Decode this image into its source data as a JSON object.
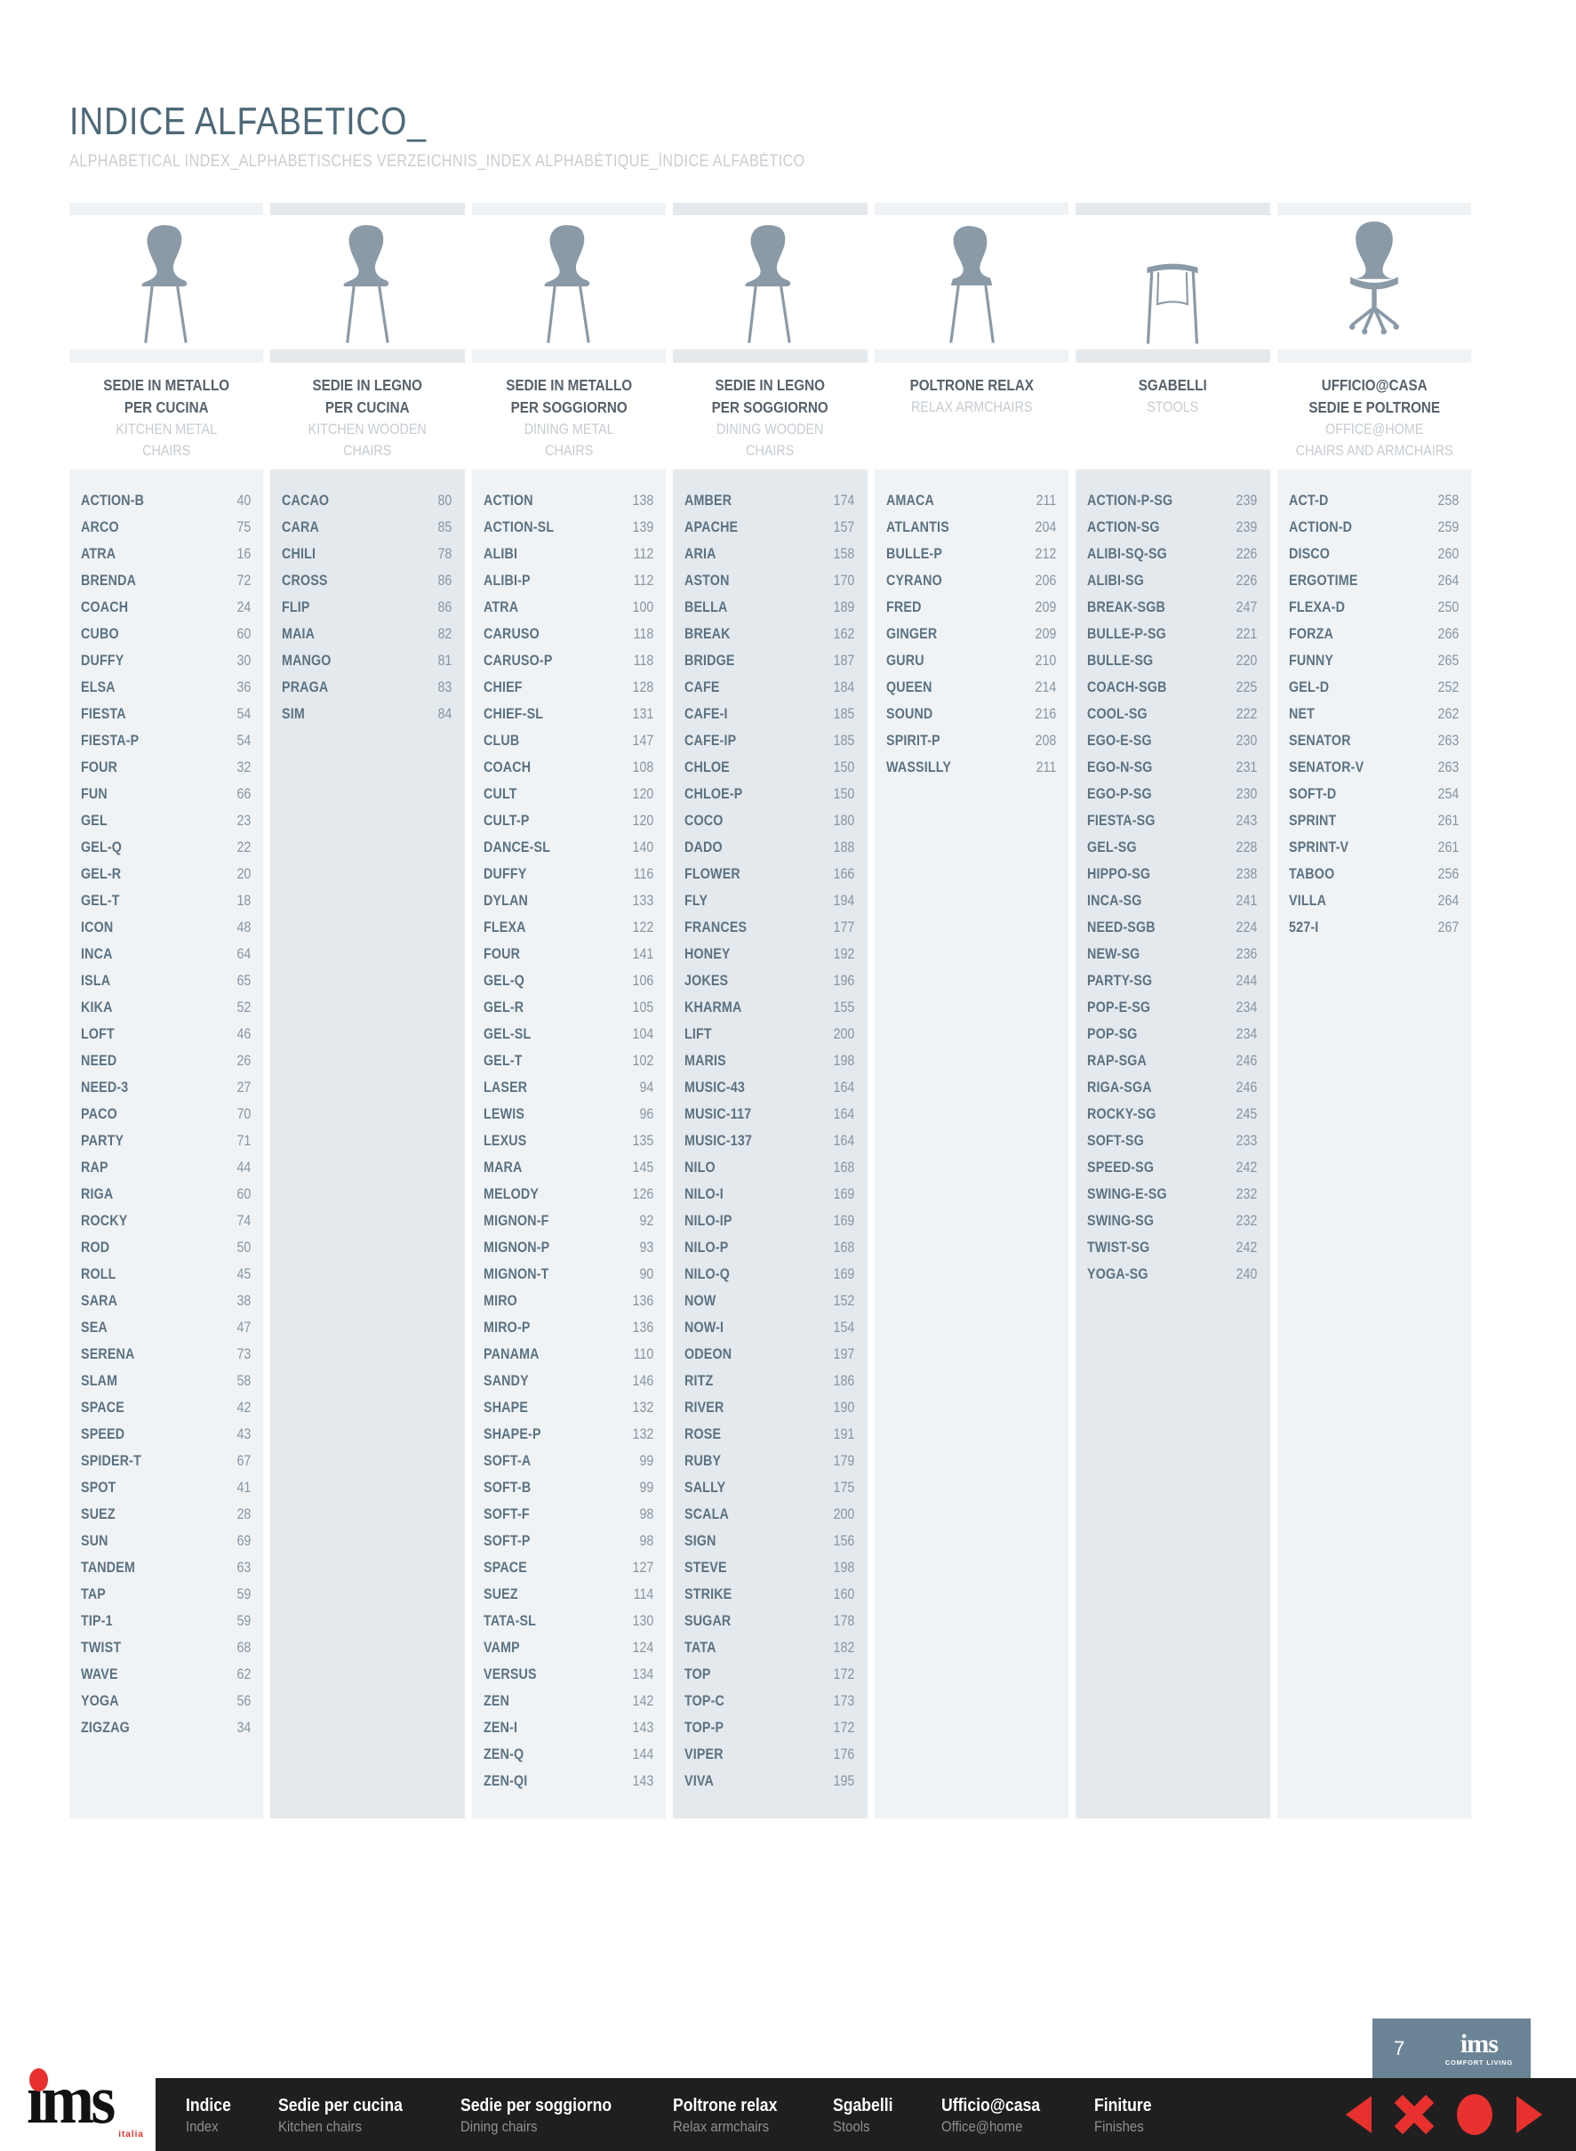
{
  "header": {
    "title": "INDICE ALFABETICO_",
    "subtitle": "ALPHABETICAL INDEX_ALPHABETISCHES VERZEICHNIS_INDEX ALPHABÉTIQUE_ÍNDICE ALFABÉTICO"
  },
  "columns": [
    {
      "id": "kitchen-metal-chairs",
      "icon": "chair-side-icon",
      "title_lines": [
        "SEDIE IN METALLO",
        "PER CUCINA"
      ],
      "subtitle_lines": [
        "KITCHEN METAL",
        "CHAIRS"
      ],
      "items": [
        [
          "ACTION-B",
          "40"
        ],
        [
          "ARCO",
          "75"
        ],
        [
          "ATRA",
          "16"
        ],
        [
          "BRENDA",
          "72"
        ],
        [
          "COACH",
          "24"
        ],
        [
          "CUBO",
          "60"
        ],
        [
          "DUFFY",
          "30"
        ],
        [
          "ELSA",
          "36"
        ],
        [
          "FIESTA",
          "54"
        ],
        [
          "FIESTA-P",
          "54"
        ],
        [
          "FOUR",
          "32"
        ],
        [
          "FUN",
          "66"
        ],
        [
          "GEL",
          "23"
        ],
        [
          "GEL-Q",
          "22"
        ],
        [
          "GEL-R",
          "20"
        ],
        [
          "GEL-T",
          "18"
        ],
        [
          "ICON",
          "48"
        ],
        [
          "INCA",
          "64"
        ],
        [
          "ISLA",
          "65"
        ],
        [
          "KIKA",
          "52"
        ],
        [
          "LOFT",
          "46"
        ],
        [
          "NEED",
          "26"
        ],
        [
          "NEED-3",
          "27"
        ],
        [
          "PACO",
          "70"
        ],
        [
          "PARTY",
          "71"
        ],
        [
          "RAP",
          "44"
        ],
        [
          "RIGA",
          "60"
        ],
        [
          "ROCKY",
          "74"
        ],
        [
          "ROD",
          "50"
        ],
        [
          "ROLL",
          "45"
        ],
        [
          "SARA",
          "38"
        ],
        [
          "SEA",
          "47"
        ],
        [
          "SERENA",
          "73"
        ],
        [
          "SLAM",
          "58"
        ],
        [
          "SPACE",
          "42"
        ],
        [
          "SPEED",
          "43"
        ],
        [
          "SPIDER-T",
          "67"
        ],
        [
          "SPOT",
          "41"
        ],
        [
          "SUEZ",
          "28"
        ],
        [
          "SUN",
          "69"
        ],
        [
          "TANDEM",
          "63"
        ],
        [
          "TAP",
          "59"
        ],
        [
          "TIP-1",
          "59"
        ],
        [
          "TWIST",
          "68"
        ],
        [
          "WAVE",
          "62"
        ],
        [
          "YOGA",
          "56"
        ],
        [
          "ZIGZAG",
          "34"
        ]
      ]
    },
    {
      "id": "kitchen-wooden-chairs",
      "icon": "chair-side-icon",
      "title_lines": [
        "SEDIE IN LEGNO",
        "PER CUCINA"
      ],
      "subtitle_lines": [
        "KITCHEN WOODEN",
        "CHAIRS"
      ],
      "items": [
        [
          "CACAO",
          "80"
        ],
        [
          "CARA",
          "85"
        ],
        [
          "CHILI",
          "78"
        ],
        [
          "CROSS",
          "86"
        ],
        [
          "FLIP",
          "86"
        ],
        [
          "MAIA",
          "82"
        ],
        [
          "MANGO",
          "81"
        ],
        [
          "PRAGA",
          "83"
        ],
        [
          "SIM",
          "84"
        ]
      ]
    },
    {
      "id": "dining-metal-chairs",
      "icon": "chair-side-icon",
      "title_lines": [
        "SEDIE IN METALLO",
        "PER SOGGIORNO"
      ],
      "subtitle_lines": [
        "DINING METAL",
        "CHAIRS"
      ],
      "items": [
        [
          "ACTION",
          "138"
        ],
        [
          "ACTION-SL",
          "139"
        ],
        [
          "ALIBI",
          "112"
        ],
        [
          "ALIBI-P",
          "112"
        ],
        [
          "ATRA",
          "100"
        ],
        [
          "CARUSO",
          "118"
        ],
        [
          "CARUSO-P",
          "118"
        ],
        [
          "CHIEF",
          "128"
        ],
        [
          "CHIEF-SL",
          "131"
        ],
        [
          "CLUB",
          "147"
        ],
        [
          "COACH",
          "108"
        ],
        [
          "CULT",
          "120"
        ],
        [
          "CULT-P",
          "120"
        ],
        [
          "DANCE-SL",
          "140"
        ],
        [
          "DUFFY",
          "116"
        ],
        [
          "DYLAN",
          "133"
        ],
        [
          "FLEXA",
          "122"
        ],
        [
          "FOUR",
          "141"
        ],
        [
          "GEL-Q",
          "106"
        ],
        [
          "GEL-R",
          "105"
        ],
        [
          "GEL-SL",
          "104"
        ],
        [
          "GEL-T",
          "102"
        ],
        [
          "LASER",
          "94"
        ],
        [
          "LEWIS",
          "96"
        ],
        [
          "LEXUS",
          "135"
        ],
        [
          "MARA",
          "145"
        ],
        [
          "MELODY",
          "126"
        ],
        [
          "MIGNON-F",
          "92"
        ],
        [
          "MIGNON-P",
          "93"
        ],
        [
          "MIGNON-T",
          "90"
        ],
        [
          "MIRO",
          "136"
        ],
        [
          "MIRO-P",
          "136"
        ],
        [
          "PANAMA",
          "110"
        ],
        [
          "SANDY",
          "146"
        ],
        [
          "SHAPE",
          "132"
        ],
        [
          "SHAPE-P",
          "132"
        ],
        [
          "SOFT-A",
          "99"
        ],
        [
          "SOFT-B",
          "99"
        ],
        [
          "SOFT-F",
          "98"
        ],
        [
          "SOFT-P",
          "98"
        ],
        [
          "SPACE",
          "127"
        ],
        [
          "SUEZ",
          "114"
        ],
        [
          "TATA-SL",
          "130"
        ],
        [
          "VAMP",
          "124"
        ],
        [
          "VERSUS",
          "134"
        ],
        [
          "ZEN",
          "142"
        ],
        [
          "ZEN-I",
          "143"
        ],
        [
          "ZEN-Q",
          "144"
        ],
        [
          "ZEN-QI",
          "143"
        ]
      ]
    },
    {
      "id": "dining-wooden-chairs",
      "icon": "chair-side-icon",
      "title_lines": [
        "SEDIE IN LEGNO",
        "PER SOGGIORNO"
      ],
      "subtitle_lines": [
        "DINING WOODEN",
        "CHAIRS"
      ],
      "items": [
        [
          "AMBER",
          "174"
        ],
        [
          "APACHE",
          "157"
        ],
        [
          "ARIA",
          "158"
        ],
        [
          "ASTON",
          "170"
        ],
        [
          "BELLA",
          "189"
        ],
        [
          "BREAK",
          "162"
        ],
        [
          "BRIDGE",
          "187"
        ],
        [
          "CAFE",
          "184"
        ],
        [
          "CAFE-I",
          "185"
        ],
        [
          "CAFE-IP",
          "185"
        ],
        [
          "CHLOE",
          "150"
        ],
        [
          "CHLOE-P",
          "150"
        ],
        [
          "COCO",
          "180"
        ],
        [
          "DADO",
          "188"
        ],
        [
          "FLOWER",
          "166"
        ],
        [
          "FLY",
          "194"
        ],
        [
          "FRANCES",
          "177"
        ],
        [
          "HONEY",
          "192"
        ],
        [
          "JOKES",
          "196"
        ],
        [
          "KHARMA",
          "155"
        ],
        [
          "LIFT",
          "200"
        ],
        [
          "MARIS",
          "198"
        ],
        [
          "MUSIC-43",
          "164"
        ],
        [
          "MUSIC-117",
          "164"
        ],
        [
          "MUSIC-137",
          "164"
        ],
        [
          "NILO",
          "168"
        ],
        [
          "NILO-I",
          "169"
        ],
        [
          "NILO-IP",
          "169"
        ],
        [
          "NILO-P",
          "168"
        ],
        [
          "NILO-Q",
          "169"
        ],
        [
          "NOW",
          "152"
        ],
        [
          "NOW-I",
          "154"
        ],
        [
          "ODEON",
          "197"
        ],
        [
          "RITZ",
          "186"
        ],
        [
          "RIVER",
          "190"
        ],
        [
          "ROSE",
          "191"
        ],
        [
          "RUBY",
          "179"
        ],
        [
          "SALLY",
          "175"
        ],
        [
          "SCALA",
          "200"
        ],
        [
          "SIGN",
          "156"
        ],
        [
          "STEVE",
          "198"
        ],
        [
          "STRIKE",
          "160"
        ],
        [
          "SUGAR",
          "178"
        ],
        [
          "TATA",
          "182"
        ],
        [
          "TOP",
          "172"
        ],
        [
          "TOP-C",
          "173"
        ],
        [
          "TOP-P",
          "172"
        ],
        [
          "VIPER",
          "176"
        ],
        [
          "VIVA",
          "195"
        ]
      ]
    },
    {
      "id": "relax-armchairs",
      "icon": "relax-armchair-icon",
      "title_lines": [
        "POLTRONE RELAX"
      ],
      "subtitle_lines": [
        "RELAX ARMCHAIRS"
      ],
      "items": [
        [
          "AMACA",
          "211"
        ],
        [
          "ATLANTIS",
          "204"
        ],
        [
          "BULLE-P",
          "212"
        ],
        [
          "CYRANO",
          "206"
        ],
        [
          "FRED",
          "209"
        ],
        [
          "GINGER",
          "209"
        ],
        [
          "GURU",
          "210"
        ],
        [
          "QUEEN",
          "214"
        ],
        [
          "SOUND",
          "216"
        ],
        [
          "SPIRIT-P",
          "208"
        ],
        [
          "WASSILLY",
          "211"
        ]
      ]
    },
    {
      "id": "stools",
      "icon": "stool-icon",
      "title_lines": [
        "SGABELLI"
      ],
      "subtitle_lines": [
        "STOOLS"
      ],
      "items": [
        [
          "ACTION-P-SG",
          "239"
        ],
        [
          "ACTION-SG",
          "239"
        ],
        [
          "ALIBI-SQ-SG",
          "226"
        ],
        [
          "ALIBI-SG",
          "226"
        ],
        [
          "BREAK-SGB",
          "247"
        ],
        [
          "BULLE-P-SG",
          "221"
        ],
        [
          "BULLE-SG",
          "220"
        ],
        [
          "COACH-SGB",
          "225"
        ],
        [
          "COOL-SG",
          "222"
        ],
        [
          "EGO-E-SG",
          "230"
        ],
        [
          "EGO-N-SG",
          "231"
        ],
        [
          "EGO-P-SG",
          "230"
        ],
        [
          "FIESTA-SG",
          "243"
        ],
        [
          "GEL-SG",
          "228"
        ],
        [
          "HIPPO-SG",
          "238"
        ],
        [
          "INCA-SG",
          "241"
        ],
        [
          "NEED-SGB",
          "224"
        ],
        [
          "NEW-SG",
          "236"
        ],
        [
          "PARTY-SG",
          "244"
        ],
        [
          "POP-E-SG",
          "234"
        ],
        [
          "POP-SG",
          "234"
        ],
        [
          "RAP-SGA",
          "246"
        ],
        [
          "RIGA-SGA",
          "246"
        ],
        [
          "ROCKY-SG",
          "245"
        ],
        [
          "SOFT-SG",
          "233"
        ],
        [
          "SPEED-SG",
          "242"
        ],
        [
          "SWING-E-SG",
          "232"
        ],
        [
          "SWING-SG",
          "232"
        ],
        [
          "TWIST-SG",
          "242"
        ],
        [
          "YOGA-SG",
          "240"
        ]
      ]
    },
    {
      "id": "office-at-home",
      "icon": "office-chair-icon",
      "title_lines": [
        "UFFICIO@CASA",
        "SEDIE E POLTRONE"
      ],
      "subtitle_lines": [
        "OFFICE@HOME",
        "CHAIRS AND ARMCHAIRS"
      ],
      "items": [
        [
          "ACT-D",
          "258"
        ],
        [
          "ACTION-D",
          "259"
        ],
        [
          "DISCO",
          "260"
        ],
        [
          "ERGOTIME",
          "264"
        ],
        [
          "FLEXA-D",
          "250"
        ],
        [
          "FORZA",
          "266"
        ],
        [
          "FUNNY",
          "265"
        ],
        [
          "GEL-D",
          "252"
        ],
        [
          "NET",
          "262"
        ],
        [
          "SENATOR",
          "263"
        ],
        [
          "SENATOR-V",
          "263"
        ],
        [
          "SOFT-D",
          "254"
        ],
        [
          "SPRINT",
          "261"
        ],
        [
          "SPRINT-V",
          "261"
        ],
        [
          "TABOO",
          "256"
        ],
        [
          "VILLA",
          "264"
        ],
        [
          "527-I",
          "267"
        ]
      ]
    }
  ],
  "badge": {
    "page_number": "7",
    "logo_text": "ims",
    "logo_subtext": "COMFORT LIVING"
  },
  "corner_logo": {
    "text": "ims",
    "country": "italia"
  },
  "footer": {
    "items": [
      {
        "label": "Indice",
        "sublabel": "Index"
      },
      {
        "label": "Sedie per cucina",
        "sublabel": "Kitchen chairs"
      },
      {
        "label": "Sedie per soggiorno",
        "sublabel": "Dining chairs"
      },
      {
        "label": "Poltrone relax",
        "sublabel": "Relax armchairs"
      },
      {
        "label": "Sgabelli",
        "sublabel": "Stools"
      },
      {
        "label": "Ufficio@casa",
        "sublabel": "Office@home"
      },
      {
        "label": "Finiture",
        "sublabel": "Finishes"
      }
    ],
    "nav_icons": [
      "nav-prev-icon",
      "nav-close-icon",
      "nav-dot-icon",
      "nav-next-icon"
    ]
  },
  "colors": {
    "accent_red": "#e8312e",
    "title_steel": "#4d6878",
    "icon_gray": "#8b9aa7",
    "column_bg_light": "#f0f3f5",
    "column_bg_dark": "#e4e9ed",
    "entry_name": "#5b7282",
    "entry_page": "#8596a3",
    "footer_bg": "#1f1f1f",
    "badge_bg": "#6b8495"
  }
}
